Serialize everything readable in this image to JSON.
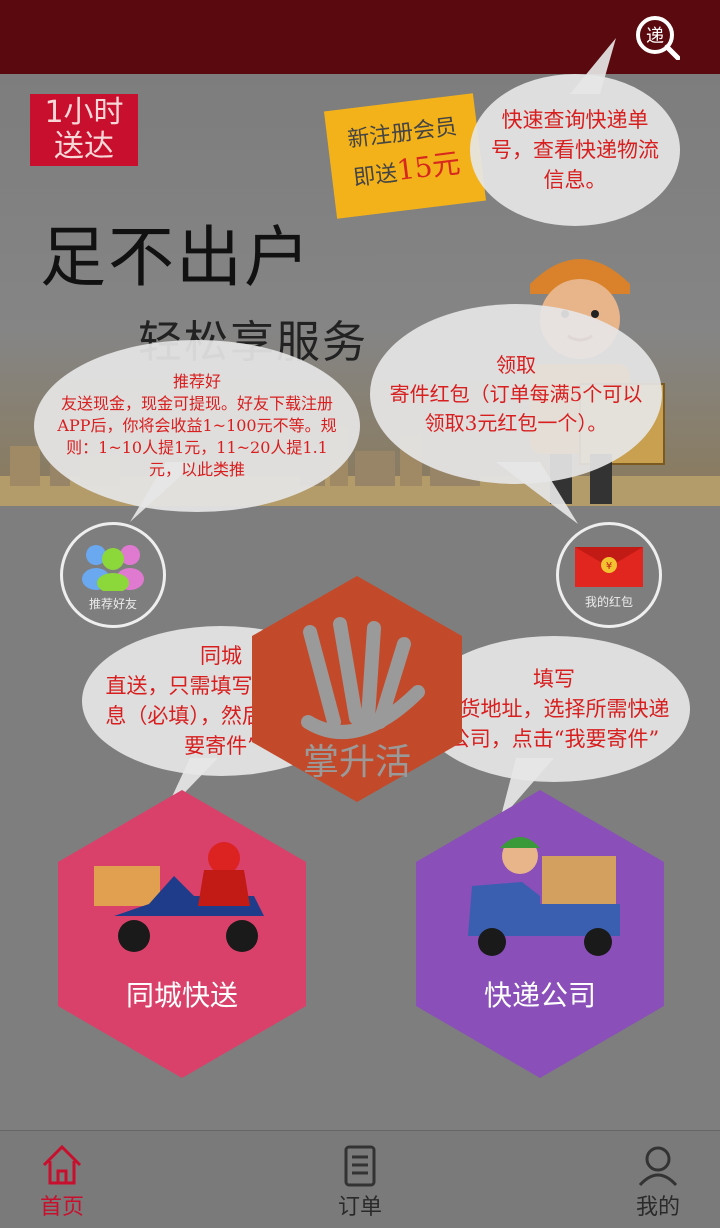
{
  "banner": {
    "badge_line1": "1小时",
    "badge_line2": "送达",
    "slogan1": "足不出户",
    "slogan2": "轻松享服务",
    "promo_line1": "新注册会员",
    "promo_line2_prefix": "即送",
    "promo_amount": "15元"
  },
  "tips": {
    "track": "快速查询快递单号，查看快递物流信息。",
    "referral_title": "推荐好",
    "referral_body": "友送现金，现金可提现。好友下载注册APP后，你将会收益1~100元不等。规则：1~10人提1元，11~20人提1.1元，以此类推",
    "redpack_title": "领取",
    "redpack_body": "寄件红包（订单每满5个可以领取3元红包一个）。",
    "samecity_title": "同城",
    "samecity_body": "直送，只需填写收件人信息（必填），然后点击“我要寄件”",
    "express_title": "填写",
    "express_body": "发货地址，选择所需快递公司，点击“我要寄件”"
  },
  "buttons": {
    "recommend": "推荐好友",
    "redpack": "我的红包"
  },
  "logo_text": "掌升活",
  "services": {
    "samecity": "同城快送",
    "express": "快递公司"
  },
  "tabs": [
    {
      "label": "首页",
      "active": true
    },
    {
      "label": "订单",
      "active": false
    },
    {
      "label": "我的",
      "active": false
    }
  ],
  "colors": {
    "topbar": "#5a0a0e",
    "accent": "#c8102e",
    "tip_text": "#d81e1e",
    "hex_red": "#d9416a",
    "hex_purple": "#8a4fb8"
  }
}
